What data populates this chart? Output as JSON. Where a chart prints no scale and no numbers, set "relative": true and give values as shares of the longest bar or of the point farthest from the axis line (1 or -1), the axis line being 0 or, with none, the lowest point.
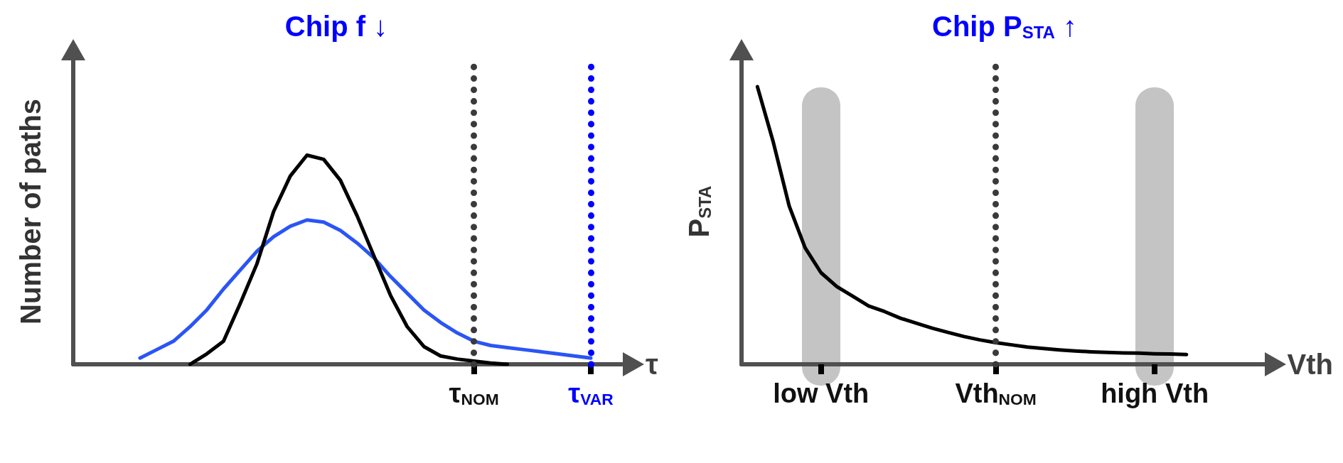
{
  "chart_data": [
    {
      "type": "line",
      "title": "Chip f ↓",
      "xlabel": "τ",
      "ylabel": "Number of paths",
      "relative": true,
      "categories": [
        null,
        null,
        null,
        null,
        null,
        null,
        null,
        null,
        null,
        null,
        null,
        null,
        null,
        null,
        null,
        null,
        null,
        null,
        null,
        null,
        null,
        null,
        null,
        null,
        "τ$_{NOM}$",
        null,
        null,
        null,
        null,
        null,
        null,
        "τ$_{VAR}$",
        null,
        null
      ],
      "series": [
        {
          "color": "#2a55f5",
          "values": [
            null,
            null,
            null,
            null,
            0.03,
            0.07,
            0.11,
            0.18,
            0.26,
            0.36,
            0.45,
            0.54,
            0.61,
            0.66,
            0.69,
            0.68,
            0.64,
            0.58,
            0.51,
            0.42,
            0.34,
            0.26,
            0.2,
            0.15,
            0.11,
            0.09,
            0.08,
            0.07,
            0.06,
            0.05,
            0.04,
            0.03,
            null,
            null
          ]
        },
        {
          "color": "#000000",
          "values": [
            null,
            null,
            null,
            null,
            null,
            null,
            null,
            0,
            0.05,
            0.11,
            0.29,
            0.48,
            0.73,
            0.9,
            1,
            0.98,
            0.88,
            0.71,
            0.52,
            0.33,
            0.18,
            0.085,
            0.04,
            0.025,
            0.015,
            0.006,
            0,
            null,
            null,
            null,
            null,
            null,
            null,
            null
          ]
        }
      ],
      "ref_lines": [
        {
          "axis": "x",
          "value": "τ$_{NOM}$",
          "color": "#3a3a3a",
          "line_style": "dotted"
        },
        {
          "axis": "x",
          "value": "τ$_{VAR}$",
          "color": "#0000ff",
          "line_style": "dotted"
        }
      ]
    },
    {
      "type": "line",
      "title": "Chip P$_{STA}$ ↑",
      "xlabel": "Vth",
      "ylabel": "P$_{STA}$",
      "relative": true,
      "categories": [
        null,
        null,
        null,
        null,
        null,
        "low Vth",
        null,
        null,
        null,
        null,
        null,
        null,
        null,
        null,
        null,
        null,
        "Vth$_{NOM}$",
        null,
        null,
        null,
        null,
        null,
        null,
        null,
        null,
        null,
        "high Vth",
        null,
        null,
        null,
        null,
        null,
        null,
        null
      ],
      "series": [
        {
          "color": "#000000",
          "values": [
            null,
            1,
            0.8,
            0.57,
            0.42,
            0.33,
            0.28,
            0.245,
            0.21,
            0.19,
            0.166,
            0.148,
            0.13,
            0.115,
            0.1,
            0.088,
            0.078,
            0.07,
            0.062,
            0.057,
            0.052,
            0.048,
            0.045,
            0.043,
            0.041,
            0.04,
            0.038,
            0.037,
            0.035,
            null,
            null,
            null,
            null,
            null
          ]
        }
      ],
      "ref_lines": [
        {
          "axis": "x",
          "value": "Vth$_{NOM}$",
          "color": "#3a3a3a",
          "line_style": "dotted"
        }
      ]
    }
  ]
}
